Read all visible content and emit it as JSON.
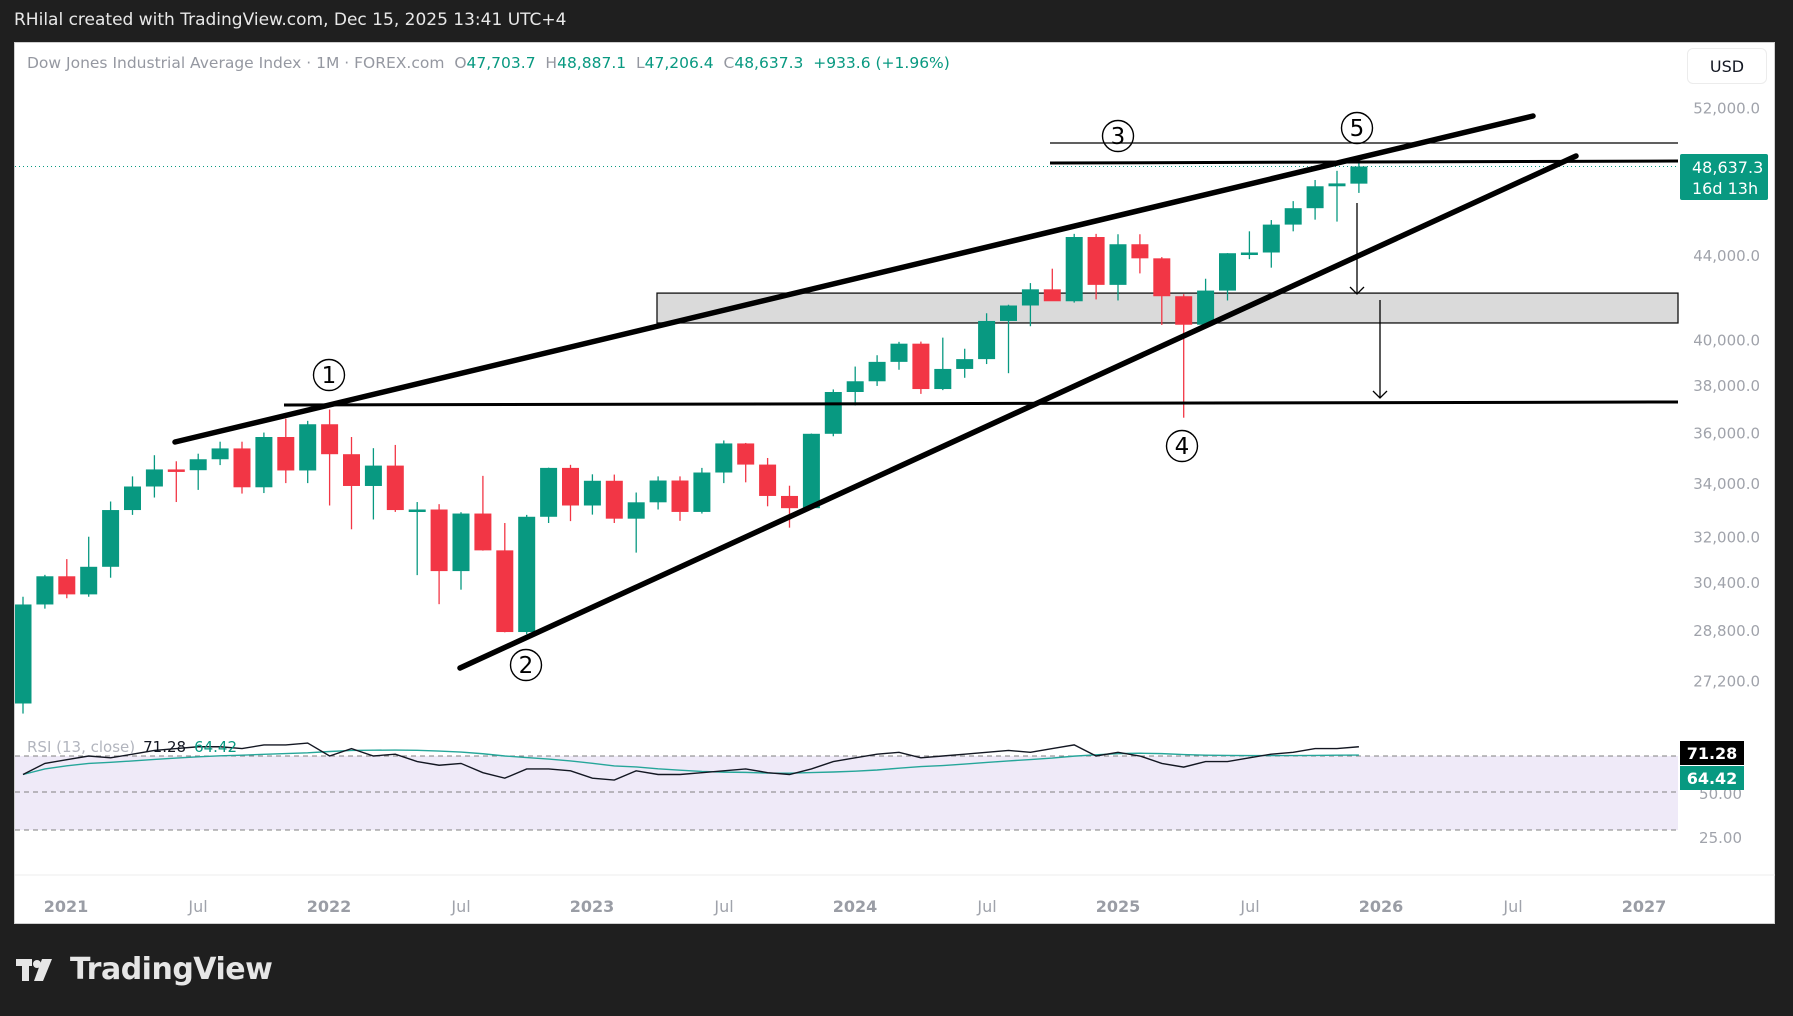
{
  "header": {
    "credit": "RHilal created with TradingView.com, Dec 15, 2025 13:41 UTC+4"
  },
  "legend": {
    "symbol": "Dow Jones Industrial Average Index",
    "sep": " · ",
    "interval": "1M",
    "source": "FOREX.com",
    "open_label": "O",
    "open": "47,703.7",
    "high_label": "H",
    "high": "48,887.1",
    "low_label": "L",
    "low": "47,206.4",
    "close_label": "C",
    "close": "48,637.3",
    "change": "+933.6 (+1.96%)"
  },
  "currency_button": "USD",
  "price_tag": {
    "price": "48,637.3",
    "countdown": "16d 13h"
  },
  "rsi": {
    "label": "RSI (13, close)",
    "value": "71.28",
    "ma_value": "64.42",
    "axis_labels": [
      "50.00",
      "25.00"
    ]
  },
  "time_axis": [
    "2021",
    "Jul",
    "2022",
    "Jul",
    "2023",
    "Jul",
    "2024",
    "Jul",
    "2025",
    "Jul",
    "2026",
    "Jul",
    "2027"
  ],
  "price_axis": [
    "52,000.0",
    "44,000.0",
    "40,000.0",
    "38,000.0",
    "36,000.0",
    "34,000.0",
    "32,000.0",
    "30,400.0",
    "28,800.0",
    "27,200.0"
  ],
  "annotations": {
    "wave_labels": [
      "1",
      "2",
      "3",
      "4",
      "5"
    ]
  },
  "brand": "TradingView",
  "colors": {
    "up": "#089981",
    "down": "#f23645",
    "rsi_line": "#131722",
    "rsi_ma": "#26a69a",
    "zone": "#dadada"
  },
  "chart_data": {
    "type": "candlestick",
    "title": "Dow Jones Industrial Average Index · 1M · FOREX.com",
    "xlabel": "",
    "ylabel": "USD",
    "scale": "log",
    "ylim": [
      26000,
      54000
    ],
    "categories": [
      "2020-11",
      "2020-12",
      "2021-01",
      "2021-02",
      "2021-03",
      "2021-04",
      "2021-05",
      "2021-06",
      "2021-07",
      "2021-08",
      "2021-09",
      "2021-10",
      "2021-11",
      "2021-12",
      "2022-01",
      "2022-02",
      "2022-03",
      "2022-04",
      "2022-05",
      "2022-06",
      "2022-07",
      "2022-08",
      "2022-09",
      "2022-10",
      "2022-11",
      "2022-12",
      "2023-01",
      "2023-02",
      "2023-03",
      "2023-04",
      "2023-05",
      "2023-06",
      "2023-07",
      "2023-08",
      "2023-09",
      "2023-10",
      "2023-11",
      "2023-12",
      "2024-01",
      "2024-02",
      "2024-03",
      "2024-04",
      "2024-05",
      "2024-06",
      "2024-07",
      "2024-08",
      "2024-09",
      "2024-10",
      "2024-11",
      "2024-12",
      "2025-01",
      "2025-02",
      "2025-03",
      "2025-04",
      "2025-05",
      "2025-06",
      "2025-07",
      "2025-08",
      "2025-09",
      "2025-10",
      "2025-11",
      "2025-12"
    ],
    "ohlc": [
      [
        26500,
        29900,
        26200,
        29640
      ],
      [
        29640,
        30650,
        29500,
        30600
      ],
      [
        30600,
        31200,
        29850,
        29980
      ],
      [
        29980,
        32000,
        29900,
        30930
      ],
      [
        30930,
        33300,
        30550,
        32980
      ],
      [
        32980,
        34260,
        32800,
        33870
      ],
      [
        33870,
        35090,
        33450,
        34530
      ],
      [
        34530,
        34850,
        33280,
        34500
      ],
      [
        34500,
        35150,
        33740,
        34930
      ],
      [
        34930,
        35630,
        34700,
        35360
      ],
      [
        35360,
        35630,
        33600,
        33840
      ],
      [
        33840,
        36000,
        33620,
        35820
      ],
      [
        35820,
        36570,
        34000,
        34490
      ],
      [
        34490,
        36480,
        34000,
        36340
      ],
      [
        36340,
        36950,
        33150,
        35130
      ],
      [
        35130,
        35820,
        32270,
        33890
      ],
      [
        33890,
        35370,
        32630,
        34680
      ],
      [
        34680,
        35500,
        32910,
        32980
      ],
      [
        32980,
        33280,
        30640,
        33000
      ],
      [
        33000,
        33200,
        29650,
        30780
      ],
      [
        30780,
        32900,
        30140,
        32850
      ],
      [
        32850,
        34280,
        31500,
        31510
      ],
      [
        31510,
        32500,
        28720,
        28730
      ],
      [
        28730,
        32800,
        28660,
        32730
      ],
      [
        32730,
        34600,
        32500,
        34590
      ],
      [
        34590,
        34710,
        32570,
        33150
      ],
      [
        33150,
        34340,
        32810,
        34090
      ],
      [
        34090,
        34330,
        32500,
        32660
      ],
      [
        32660,
        33640,
        31430,
        33270
      ],
      [
        33270,
        34260,
        33000,
        34100
      ],
      [
        34100,
        34260,
        32580,
        32910
      ],
      [
        32910,
        34590,
        32850,
        34410
      ],
      [
        34410,
        35680,
        34000,
        35560
      ],
      [
        35560,
        35580,
        34030,
        34720
      ],
      [
        34720,
        34980,
        33120,
        33510
      ],
      [
        33510,
        33900,
        32330,
        33050
      ],
      [
        33050,
        35960,
        33000,
        35950
      ],
      [
        35950,
        37800,
        35850,
        37690
      ],
      [
        37690,
        38790,
        37120,
        38150
      ],
      [
        38150,
        39290,
        37950,
        38996
      ],
      [
        38996,
        39890,
        38650,
        39807
      ],
      [
        39807,
        39900,
        37610,
        37816
      ],
      [
        37816,
        40080,
        37770,
        38686
      ],
      [
        38686,
        39580,
        38300,
        39118
      ],
      [
        39118,
        41200,
        38900,
        40843
      ],
      [
        40843,
        41600,
        38500,
        41563
      ],
      [
        41563,
        42630,
        40600,
        42330
      ],
      [
        42330,
        43330,
        41800,
        41763
      ],
      [
        41763,
        45070,
        41700,
        44910
      ],
      [
        44910,
        45070,
        41850,
        42544
      ],
      [
        42544,
        45050,
        41800,
        44544
      ],
      [
        44544,
        45050,
        43100,
        43840
      ],
      [
        43840,
        43900,
        40660,
        42001
      ],
      [
        42001,
        42100,
        36610,
        40669
      ],
      [
        40669,
        42840,
        40650,
        42270
      ],
      [
        42270,
        44100,
        41800,
        44094
      ],
      [
        44094,
        45200,
        43800,
        44130
      ],
      [
        44130,
        45780,
        43380,
        45545
      ],
      [
        45545,
        46770,
        45200,
        46398
      ],
      [
        46398,
        47900,
        45800,
        47562
      ],
      [
        47562,
        48400,
        45700,
        47716
      ],
      [
        47703.7,
        48887.1,
        47206.4,
        48637.3
      ]
    ],
    "rsi": {
      "period": 13,
      "last": 71.28,
      "ma_last": 64.42,
      "bands": [
        70,
        50,
        30
      ]
    },
    "drawings": [
      {
        "type": "trendline",
        "label": "upper channel"
      },
      {
        "type": "trendline",
        "label": "lower channel"
      },
      {
        "type": "horizontal",
        "level": 37350
      },
      {
        "type": "horizontal",
        "level": 48900
      },
      {
        "type": "horizontal",
        "level": 49850
      },
      {
        "type": "zone",
        "from": 40750,
        "to": 42150
      },
      {
        "type": "arrow",
        "direction": "down"
      },
      {
        "type": "arrow",
        "direction": "down"
      }
    ]
  }
}
